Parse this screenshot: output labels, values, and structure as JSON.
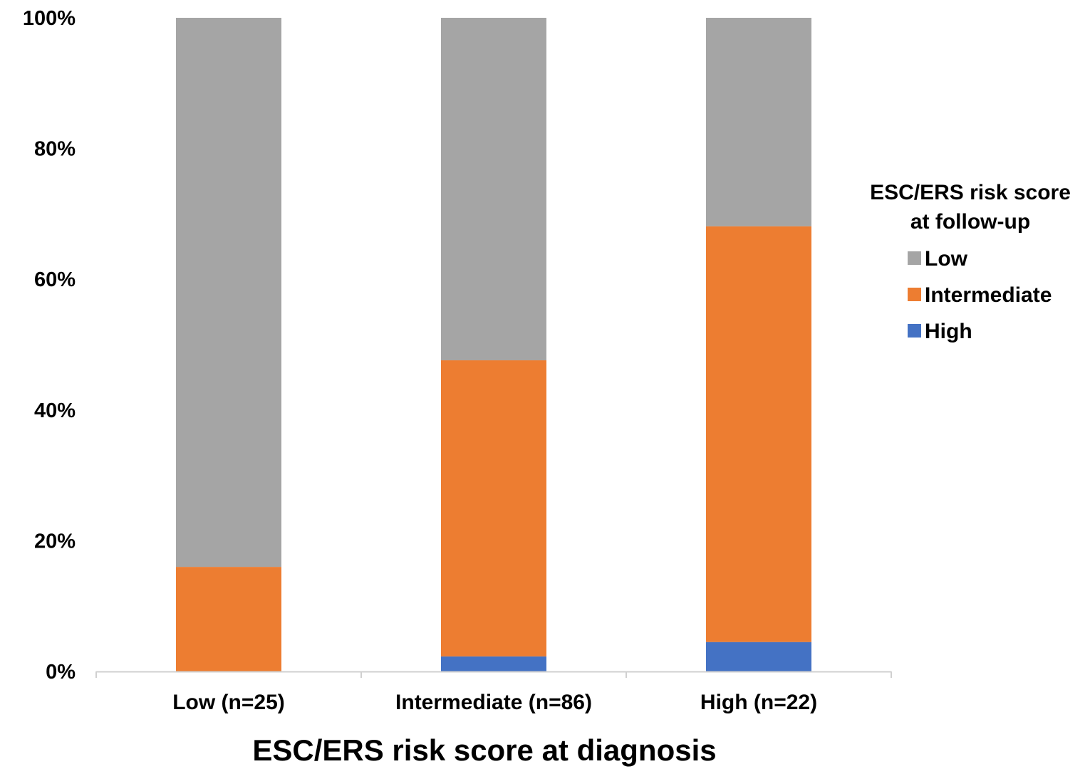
{
  "chart_data": {
    "type": "bar",
    "stacked": true,
    "percent_stacked": true,
    "categories": [
      "Low (n=25)",
      "Intermediate (n=86)",
      "High (n=22)"
    ],
    "series": [
      {
        "name": "High",
        "values": [
          0,
          2.3,
          4.5
        ],
        "color": "#4472C4"
      },
      {
        "name": "Intermediate",
        "values": [
          16.0,
          45.3,
          63.6
        ],
        "color": "#ED7D31"
      },
      {
        "name": "Low",
        "values": [
          84.0,
          52.4,
          31.9
        ],
        "color": "#A5A5A5"
      }
    ],
    "legend": {
      "title_lines": [
        "ESC/ERS risk score",
        "at follow-up"
      ],
      "order": [
        "Low",
        "Intermediate",
        "High"
      ],
      "position": "right"
    },
    "xlabel": "ESC/ERS risk score at diagnosis",
    "ylabel": "",
    "ylim": [
      0,
      100
    ],
    "yticks": [
      "0%",
      "20%",
      "40%",
      "60%",
      "80%",
      "100%"
    ],
    "grid": false
  }
}
